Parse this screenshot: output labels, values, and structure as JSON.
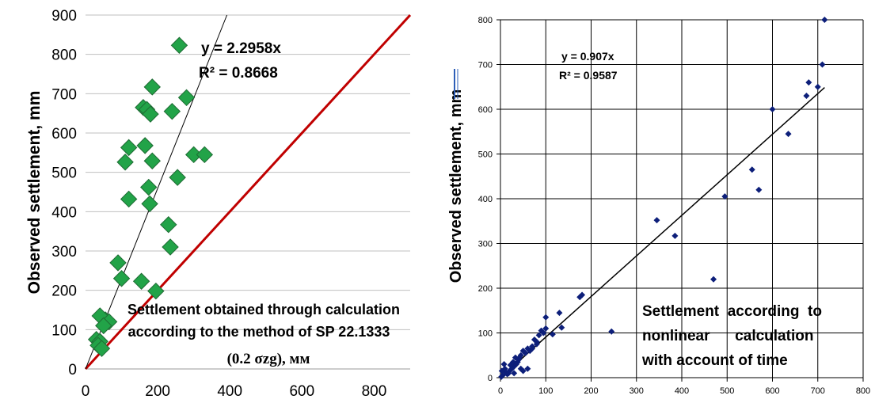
{
  "chart_data": [
    {
      "type": "scatter",
      "title": "",
      "xlabel": "",
      "ylabel": "Observed settlement, mm",
      "xlim": [
        0,
        900
      ],
      "ylim": [
        0,
        900
      ],
      "xticks": [
        "0",
        "200",
        "400",
        "600",
        "800"
      ],
      "yticks": [
        "0",
        "100",
        "200",
        "300",
        "400",
        "500",
        "600",
        "700",
        "800",
        "900"
      ],
      "grid": "horizontal",
      "marker": "diamond",
      "colors": {
        "marker": "#22a348",
        "marker_edge": "#1f6b34",
        "trendline": "#000000",
        "reference_line": "#c00000",
        "grid": "#bfbfbf"
      },
      "series": [
        {
          "x": [
            260,
            185,
            160,
            170,
            180,
            280,
            240,
            120,
            165,
            110,
            185,
            300,
            330,
            255,
            175,
            178,
            120,
            230,
            235,
            90,
            100,
            155,
            195,
            55,
            40,
            65,
            50,
            30,
            40,
            35,
            45
          ],
          "y": [
            823,
            717,
            665,
            660,
            648,
            690,
            655,
            563,
            568,
            526,
            529,
            545,
            545,
            487,
            462,
            420,
            432,
            367,
            310,
            270,
            230,
            223,
            198,
            125,
            135,
            120,
            110,
            75,
            70,
            60,
            52
          ]
        }
      ],
      "trendline": {
        "slope": 2.2958,
        "label": "y = 2.2958x",
        "r2_label": "R² = 0.8668"
      },
      "reference_line": {
        "slope": 1
      },
      "annotation": [
        "Settlement obtained through calculation",
        "according to the method of SP 22.1333"
      ],
      "annotation_serif": "(0.2 σzg), мм"
    },
    {
      "type": "scatter",
      "title": "",
      "xlabel": "",
      "ylabel": "Observed settlement, mm",
      "xlim": [
        0,
        800
      ],
      "ylim": [
        0,
        800
      ],
      "xticks": [
        "0",
        "100",
        "200",
        "300",
        "400",
        "500",
        "600",
        "700",
        "800"
      ],
      "yticks": [
        "0",
        "100",
        "200",
        "300",
        "400",
        "500",
        "600",
        "700",
        "800"
      ],
      "grid": "both",
      "marker": "diamond",
      "colors": {
        "marker": "#0d1f7a",
        "trendline": "#000000",
        "grid": "#000000"
      },
      "series": [
        {
          "x": [
            715,
            710,
            680,
            700,
            675,
            600,
            635,
            555,
            570,
            495,
            345,
            385,
            470,
            245,
            180,
            175,
            130,
            135,
            100,
            100,
            115,
            90,
            85,
            80,
            75,
            70,
            65,
            60,
            55,
            50,
            45,
            42,
            40,
            38,
            35,
            33,
            30,
            28,
            25,
            22,
            20,
            18,
            15,
            12,
            10,
            8,
            5,
            3,
            2,
            50,
            60,
            70,
            80,
            95,
            30,
            45
          ],
          "y": [
            800,
            700,
            660,
            650,
            630,
            600,
            545,
            465,
            420,
            405,
            352,
            317,
            220,
            103,
            185,
            180,
            145,
            112,
            135,
            110,
            97,
            105,
            95,
            80,
            85,
            70,
            60,
            65,
            55,
            60,
            50,
            45,
            40,
            35,
            30,
            45,
            25,
            35,
            20,
            28,
            15,
            10,
            8,
            12,
            20,
            30,
            5,
            15,
            2,
            15,
            20,
            65,
            75,
            100,
            10,
            20
          ]
        }
      ],
      "trendline": {
        "slope": 0.907,
        "label": "y = 0.907x",
        "r2_label": "R² = 0.9587"
      },
      "annotation": [
        "Settlement  according  to",
        "nonlinear      calculation",
        "with account of time"
      ]
    }
  ]
}
